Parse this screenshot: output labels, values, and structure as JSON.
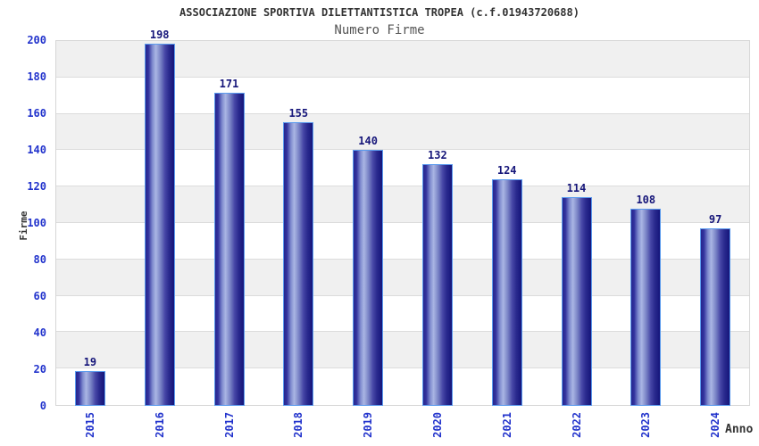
{
  "chart_data": {
    "type": "bar",
    "title": "ASSOCIAZIONE SPORTIVA DILETTANTISTICA TROPEA (c.f.01943720688)",
    "subtitle": "Numero Firme",
    "categories": [
      "2015",
      "2016",
      "2017",
      "2018",
      "2019",
      "2020",
      "2021",
      "2022",
      "2023",
      "2024"
    ],
    "values": [
      19,
      198,
      171,
      155,
      140,
      132,
      124,
      114,
      108,
      97
    ],
    "xlabel": "Anno",
    "ylabel": "Firme",
    "ylim": [
      0,
      200
    ],
    "ytick_step": 20,
    "ytick_labels": [
      "0",
      "20",
      "40",
      "60",
      "80",
      "100",
      "120",
      "140",
      "160",
      "180",
      "200"
    ],
    "grid": "horizontal-bands-alternating",
    "legend": "none",
    "colors": {
      "bar_dark": "#15157a",
      "bar_mid": "#32329e",
      "bar_highlight": "#aab6e4",
      "bar_border": "#5b9bee",
      "axis_tick_label": "#2233cc",
      "value_label": "#16167a",
      "band_gray": "#f0f0f0",
      "band_white": "#ffffff",
      "gridline": "#dcdcdc",
      "plot_border": "#d6d6d6",
      "title_text": "#333333",
      "subtitle_text": "#555555",
      "axis_label_text": "#333333",
      "background": "#ffffff"
    }
  }
}
